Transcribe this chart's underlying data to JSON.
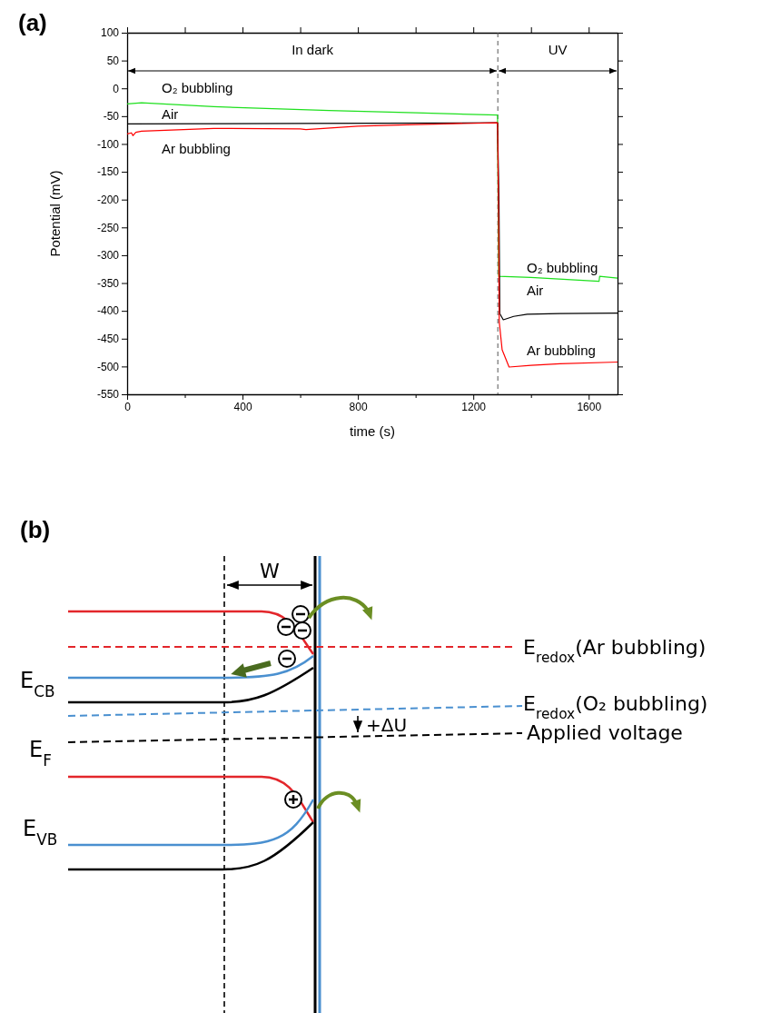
{
  "chart_data": [
    {
      "type": "line",
      "title": "(a)",
      "xlabel": "time (s)",
      "ylabel": "Potential (mV)",
      "xlim": [
        0,
        1700
      ],
      "xticks": [
        0,
        {
          "value": 200,
          "label": null
        },
        400,
        {
          "value": 600,
          "label": null
        },
        800,
        {
          "value": 1000,
          "label": null
        },
        1200,
        {
          "value": 1400,
          "label": null
        },
        1600
      ],
      "ylim": [
        -550,
        100
      ],
      "yticks": [
        100,
        50,
        0,
        -50,
        -100,
        -150,
        -200,
        -250,
        -300,
        -350,
        -400,
        -450,
        -500,
        -550
      ],
      "grid": false,
      "marker": "none",
      "line_style": "solid",
      "ref_lines": [
        {
          "axis": "x",
          "value": 1285,
          "line_style": "dashed",
          "color": "#555555"
        }
      ],
      "annotations": [
        "In dark",
        "UV"
      ],
      "series": [
        {
          "name": "O₂ bubbling",
          "color": "#1ee01e",
          "x": [
            0,
            50,
            300,
            700,
            1000,
            1284,
            1286,
            1288,
            1400,
            1636,
            1638,
            1700
          ],
          "values": [
            -28,
            -26,
            -33,
            -40,
            -44,
            -48,
            -200,
            -338,
            -340,
            -347,
            -338,
            -341
          ]
        },
        {
          "name": "Air",
          "color": "#000000",
          "x": [
            0,
            600,
            1284,
            1289,
            1292,
            1304,
            1340,
            1387,
            1500,
            1700
          ],
          "values": [
            -64,
            -63,
            -62,
            -200,
            -405,
            -416,
            -410,
            -406,
            -405,
            -404
          ]
        },
        {
          "name": "Ar bubbling",
          "color": "#ff0000",
          "x": [
            0,
            15,
            20,
            30,
            50,
            300,
            600,
            620,
            800,
            1000,
            1284,
            1287,
            1290,
            1300,
            1324,
            1400,
            1500,
            1700
          ],
          "values": [
            -82,
            -80,
            -85,
            -79,
            -77,
            -72,
            -73,
            -74,
            -68,
            -65,
            -62,
            -200,
            -420,
            -470,
            -501,
            -498,
            -495,
            -492
          ]
        }
      ]
    },
    {
      "type": "other",
      "title": "(b)",
      "annotations": [
        "W",
        "E$_{CB}$",
        "E$_{F}$",
        "E$_{VB}$",
        "E$_{redox}$(Ar bubbling)",
        "E$_{redox}$(O₂ bubbling)",
        "+ΔU",
        "Applied voltage"
      ]
    }
  ]
}
